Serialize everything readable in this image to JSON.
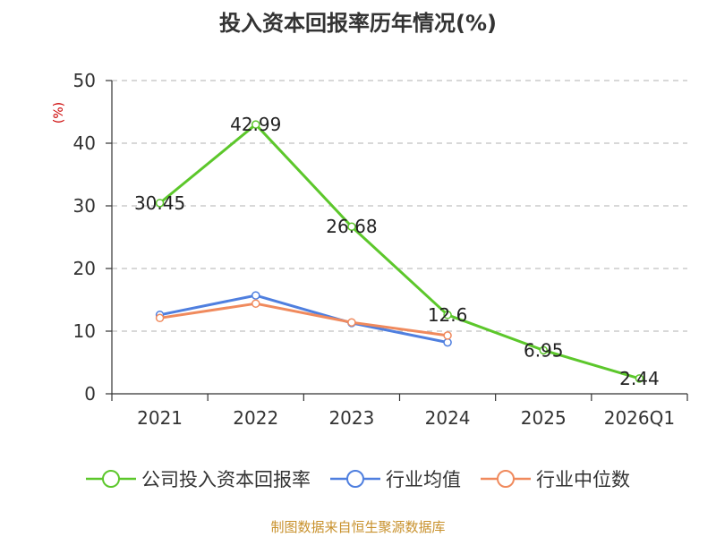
{
  "title": "投入资本回报率历年情况(%)",
  "source_note": "制图数据来自恒生聚源数据库",
  "colors": {
    "company": "#5cc72b",
    "industry_avg": "#4f7fdf",
    "industry_median": "#f08a5d",
    "grid": "#c0c0c0",
    "axis": "#333333"
  },
  "legend": [
    {
      "label": "公司投入资本回报率",
      "color": "#5cc72b"
    },
    {
      "label": "行业均值",
      "color": "#4f7fdf"
    },
    {
      "label": "行业中位数",
      "color": "#f08a5d"
    }
  ],
  "chart_data": {
    "type": "line",
    "title": "投入资本回报率历年情况(%)",
    "categories": [
      "2021",
      "2022",
      "2023",
      "2024",
      "2025",
      "2026Q1"
    ],
    "ylabel": "(%)",
    "xlabel": "",
    "ylim": [
      0,
      50
    ],
    "yticks": [
      0,
      10,
      20,
      30,
      40,
      50
    ],
    "grid": true,
    "legend_position": "bottom",
    "series": [
      {
        "name": "公司投入资本回报率",
        "color": "#5cc72b",
        "values": [
          30.45,
          42.99,
          26.68,
          12.6,
          6.95,
          2.44
        ],
        "labels": [
          "30.45",
          "42.99",
          "26.68",
          "12.6",
          "6.95",
          "2.44"
        ]
      },
      {
        "name": "行业均值",
        "color": "#4f7fdf",
        "values": [
          12.6,
          15.7,
          11.3,
          8.2,
          null,
          null
        ]
      },
      {
        "name": "行业中位数",
        "color": "#f08a5d",
        "values": [
          12.1,
          14.4,
          11.4,
          9.3,
          null,
          null
        ]
      }
    ]
  }
}
